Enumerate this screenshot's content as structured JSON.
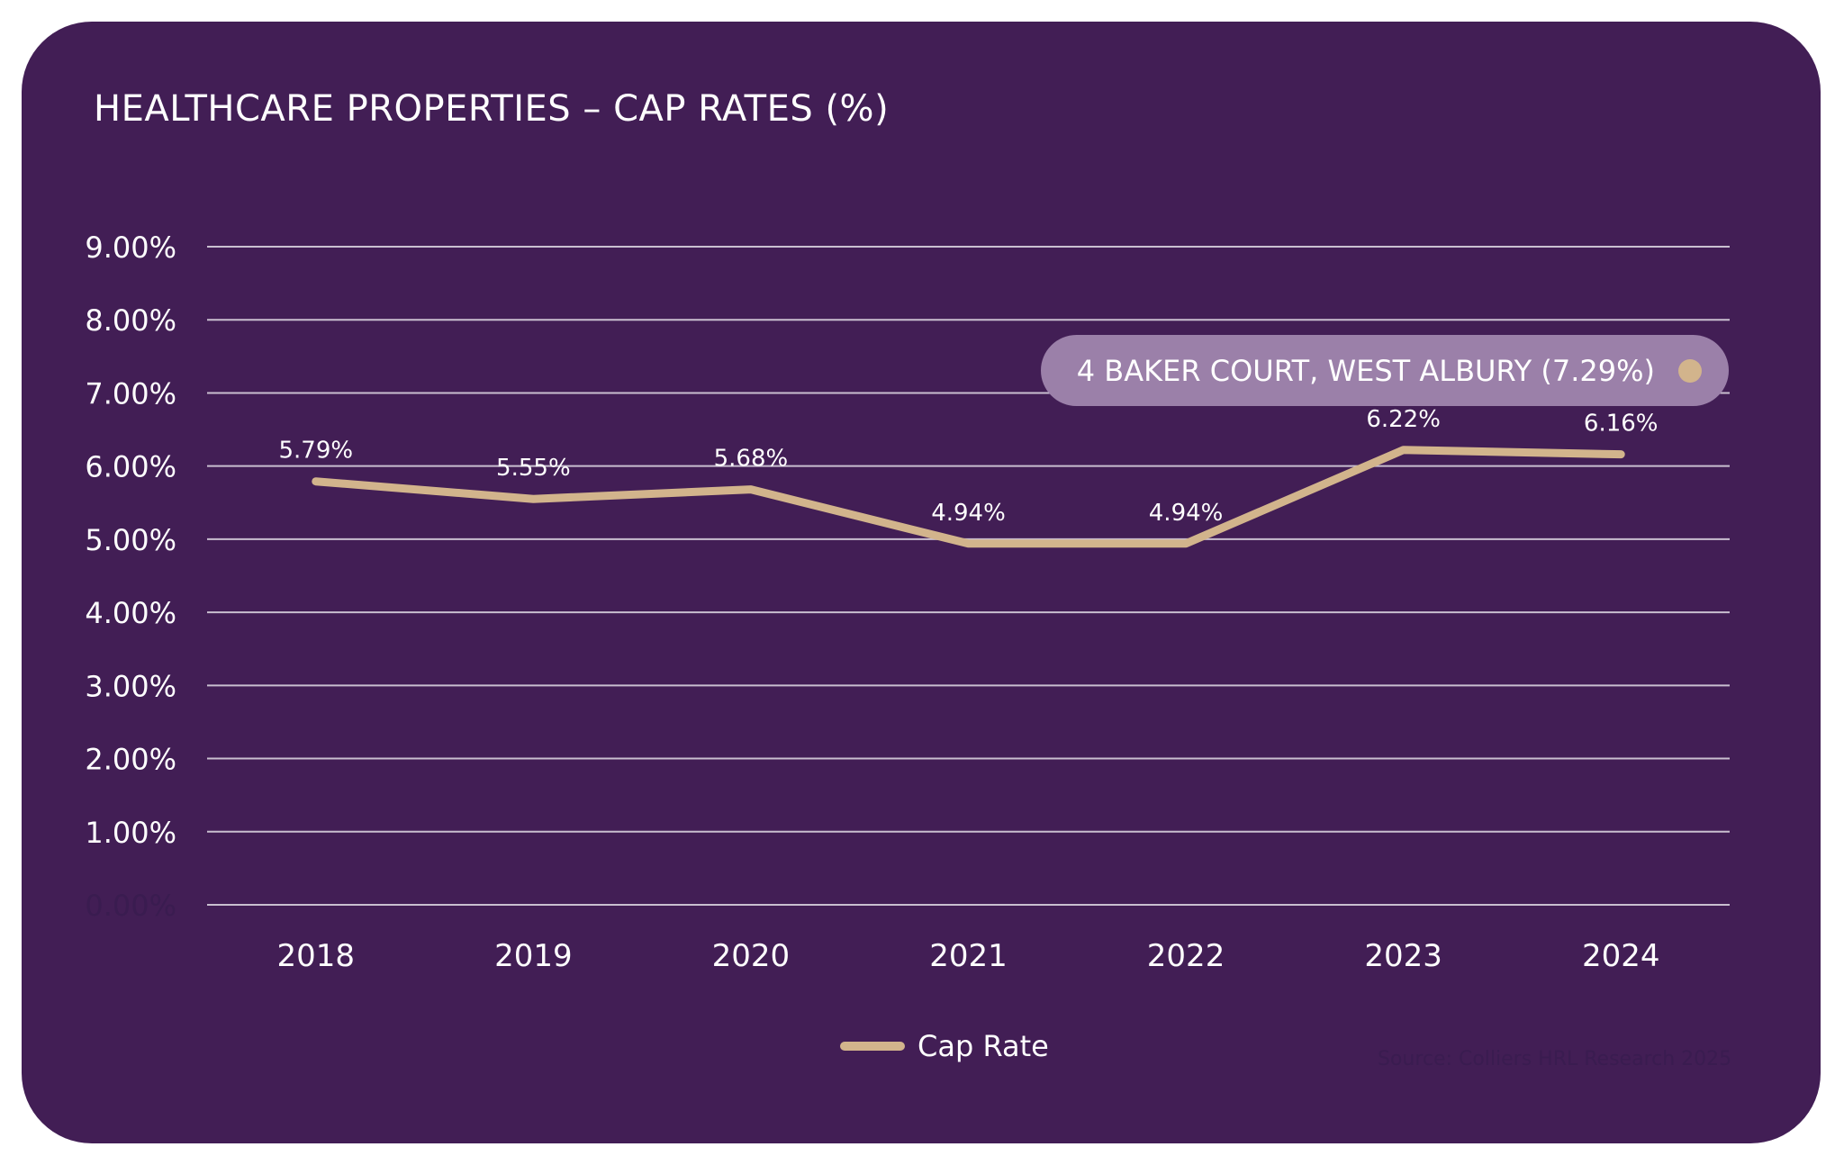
{
  "chart_data": {
    "type": "line",
    "title": "HEALTHCARE PROPERTIES – CAP RATES (%)",
    "categories": [
      "2018",
      "2019",
      "2020",
      "2021",
      "2022",
      "2023",
      "2024"
    ],
    "series": [
      {
        "name": "Cap Rate",
        "values": [
          5.79,
          5.55,
          5.68,
          4.94,
          4.94,
          6.22,
          6.16
        ],
        "labels": [
          "5.79%",
          "5.55%",
          "5.68%",
          "4.94%",
          "4.94%",
          "6.22%",
          "6.16%"
        ],
        "color": "#d2b48c"
      }
    ],
    "ylim": [
      0,
      9
    ],
    "yticks": [
      "0.00%",
      "1.00%",
      "2.00%",
      "3.00%",
      "4.00%",
      "5.00%",
      "6.00%",
      "7.00%",
      "8.00%",
      "9.00%"
    ],
    "grid": true,
    "legend_position": "bottom",
    "annotation": {
      "label": "4 BAKER COURT, WEST ALBURY (7.29%)",
      "value": 7.29,
      "color": "#d2b48c"
    },
    "source": "Source: Colliers HRL Research 2025"
  },
  "colors": {
    "background": "#421e55",
    "grid": "#c9bfd0",
    "pill": "#9b80a9"
  }
}
